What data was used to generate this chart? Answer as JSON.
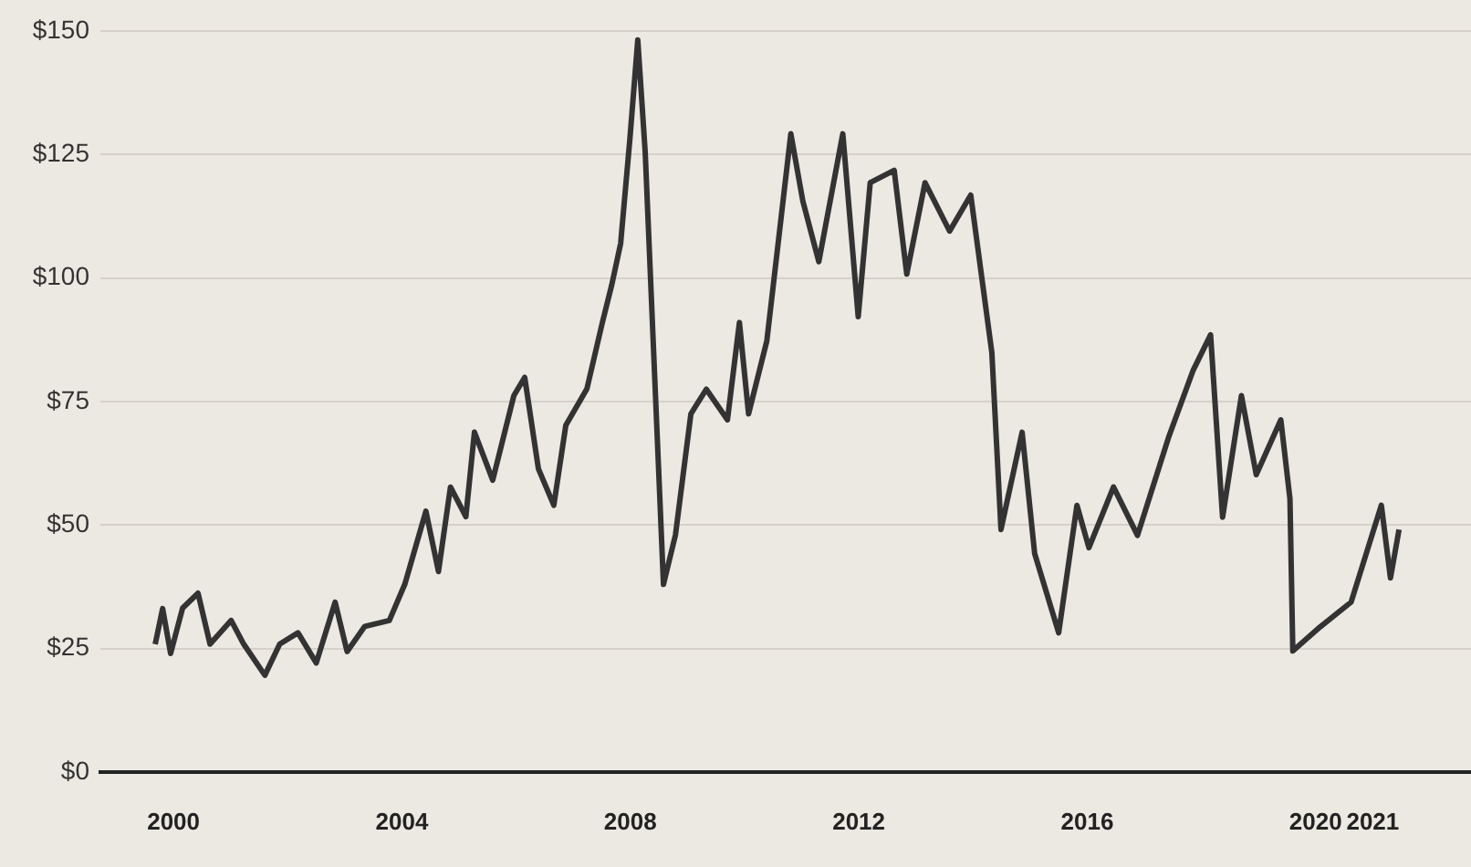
{
  "chart_data": {
    "type": "line",
    "color": "#333333",
    "x": [
      1999.68,
      1999.81,
      1999.95,
      2000.16,
      2000.43,
      2000.64,
      2001.01,
      2001.23,
      2001.6,
      2001.86,
      2002.18,
      2002.5,
      2002.83,
      2003.04,
      2003.35,
      2003.78,
      2004.05,
      2004.42,
      2004.64,
      2004.85,
      2005.12,
      2005.27,
      2005.59,
      2005.96,
      2006.15,
      2006.39,
      2006.66,
      2006.87,
      2007.24,
      2007.51,
      2007.67,
      2007.83,
      2007.99,
      2008.13,
      2008.26,
      2008.58,
      2008.79,
      2009.06,
      2009.33,
      2009.7,
      2009.91,
      2010.07,
      2010.39,
      2010.81,
      2011.02,
      2011.3,
      2011.72,
      2011.99,
      2012.2,
      2012.62,
      2012.84,
      2013.16,
      2013.59,
      2013.96,
      2014.33,
      2014.49,
      2014.86,
      2015.08,
      2015.5,
      2015.82,
      2016.03,
      2016.46,
      2016.88,
      2017.42,
      2017.85,
      2018.16,
      2018.37,
      2018.7,
      2018.96,
      2019.39,
      2019.55,
      2019.6,
      2020.08,
      2020.62,
      2021.15,
      2021.31,
      2021.46
    ],
    "values": [
      25.9,
      33.1,
      24,
      33.2,
      36.2,
      25.9,
      30.7,
      25.9,
      19.6,
      25.9,
      28.2,
      22.1,
      34.4,
      24.4,
      29.5,
      30.7,
      38,
      52.8,
      40.6,
      57.7,
      51.7,
      68.8,
      59.1,
      76.2,
      79.9,
      61.4,
      54,
      70.2,
      77.6,
      91,
      98.4,
      107,
      127.9,
      148.2,
      125.5,
      38,
      48,
      72.5,
      77.5,
      71.3,
      91,
      72.5,
      87.3,
      129.2,
      115.6,
      103.3,
      129.2,
      92.2,
      119.3,
      121.8,
      100.8,
      119.3,
      109.5,
      116.8,
      84.9,
      49.1,
      68.8,
      44.2,
      28.2,
      54,
      45.4,
      57.7,
      47.9,
      67.6,
      81.2,
      88.5,
      51.6,
      76.2,
      60.2,
      71.3,
      55.3,
      24.5,
      29.4,
      34.4,
      54,
      39.3,
      49.1
    ],
    "xlim": [
      1998.72,
      2022.72
    ],
    "xticks": [
      2000,
      2004,
      2008,
      2012,
      2016,
      2020,
      2021
    ],
    "ylim": [
      0,
      150
    ],
    "yticks": [
      {
        "value": 0,
        "label": "$0"
      },
      {
        "value": 25,
        "label": "$25"
      },
      {
        "value": 50,
        "label": "$50"
      },
      {
        "value": 75,
        "label": "$75"
      },
      {
        "value": 100,
        "label": "$100"
      },
      {
        "value": 125,
        "label": "$125"
      },
      {
        "value": 150,
        "label": "$150"
      }
    ],
    "grid": "y"
  }
}
